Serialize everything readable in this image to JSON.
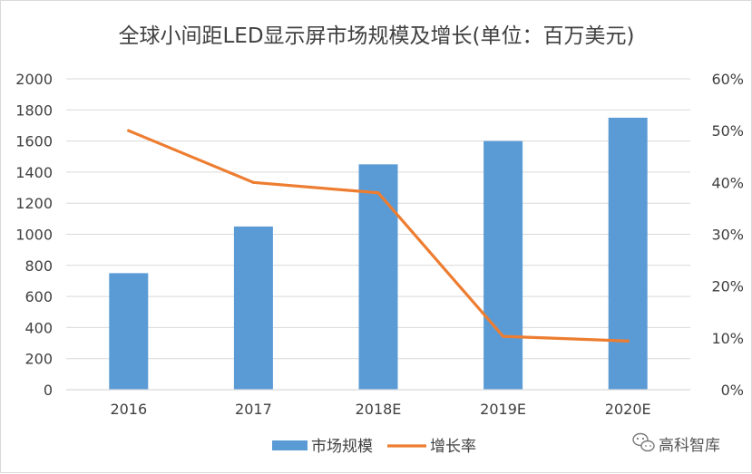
{
  "chart_data": {
    "type": "bar",
    "title": "全球小间距LED显示屏市场规模及增长(单位：百万美元)",
    "categories": [
      "2016",
      "2017",
      "2018E",
      "2019E",
      "2020E"
    ],
    "series": [
      {
        "name": "市场规模",
        "type": "bar",
        "axis": "left",
        "color": "#5b9bd5",
        "values": [
          750,
          1050,
          1450,
          1600,
          1750
        ]
      },
      {
        "name": "增长率",
        "type": "line",
        "axis": "right",
        "color": "#ed7d31",
        "values": [
          50,
          40,
          38,
          10.3,
          9.4
        ]
      }
    ],
    "y_left": {
      "min": 0,
      "max": 2000,
      "ticks": [
        "0",
        "200",
        "400",
        "600",
        "800",
        "1000",
        "1200",
        "1400",
        "1600",
        "1800",
        "2000"
      ]
    },
    "y_right": {
      "min": 0,
      "max": 60,
      "unit": "%",
      "ticks": [
        "0%",
        "10%",
        "20%",
        "30%",
        "40%",
        "50%",
        "60%"
      ]
    },
    "grid": true,
    "gridline_color": "#d9d9d9",
    "legend_position": "bottom"
  },
  "watermark": {
    "icon": "wechat-icon",
    "text": "高科智库"
  }
}
